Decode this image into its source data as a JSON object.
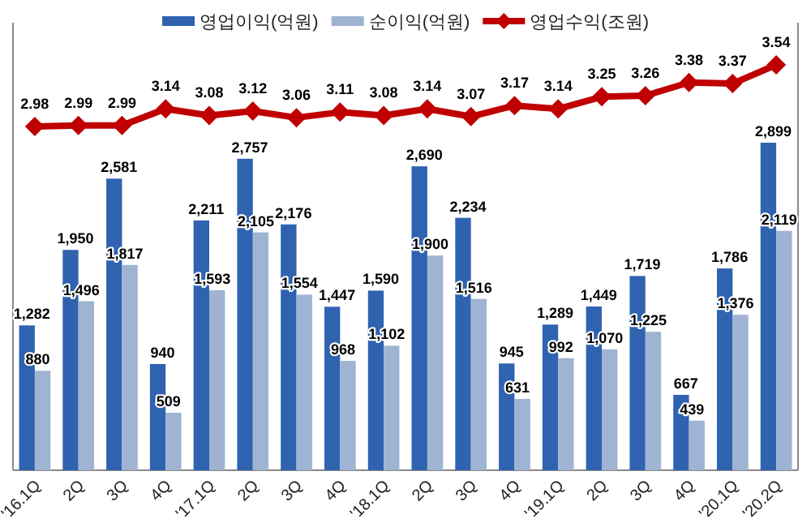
{
  "chart_data": [
    {
      "type": "bar",
      "legend": "top",
      "categories": [
        "'16.1Q",
        "2Q",
        "3Q",
        "4Q",
        "'17.1Q",
        "2Q",
        "3Q",
        "4Q",
        "'18.1Q",
        "2Q",
        "3Q",
        "4Q",
        "'19.1Q",
        "2Q",
        "3Q",
        "4Q",
        "'20.1Q",
        "'20.2Q"
      ],
      "series": [
        {
          "name": "영업이익(억원)",
          "color": "#2f63b0",
          "values": [
            1282,
            1950,
            2581,
            940,
            2211,
            2757,
            2176,
            1447,
            1590,
            2690,
            2234,
            945,
            1289,
            1449,
            1719,
            667,
            1786,
            2899
          ],
          "value_labels": [
            "1,282",
            "1,950",
            "2,581",
            "940",
            "2,211",
            "2,757",
            "2,176",
            "1,447",
            "1,590",
            "2,690",
            "2,234",
            "945",
            "1,289",
            "1,449",
            "1,719",
            "667",
            "1,786",
            "2,899"
          ]
        },
        {
          "name": "순이익(억원)",
          "color": "#9fb3d3",
          "values": [
            880,
            1496,
            1817,
            509,
            1593,
            2105,
            1554,
            968,
            1102,
            1900,
            1516,
            631,
            992,
            1070,
            1225,
            439,
            1376,
            2119
          ],
          "value_labels": [
            "880",
            "1,496",
            "1,817",
            "509",
            "1,593",
            "2,105",
            "1,554",
            "968",
            "1,102",
            "1,900",
            "1,516",
            "631",
            "992",
            "1,070",
            "1,225",
            "439",
            "1,376",
            "2,119"
          ]
        }
      ]
    },
    {
      "type": "line",
      "legend": "top",
      "marker": "diamond",
      "categories": [
        null,
        null,
        null,
        null,
        null,
        null,
        null,
        null,
        null,
        null,
        null,
        null,
        null,
        null,
        null,
        null,
        null,
        null
      ],
      "series": [
        {
          "name": "영업수익(조원)",
          "color": "#c00000",
          "values": [
            2.98,
            2.99,
            2.99,
            3.14,
            3.08,
            3.12,
            3.06,
            3.11,
            3.08,
            3.14,
            3.07,
            3.17,
            3.14,
            3.25,
            3.26,
            3.38,
            3.37,
            3.54
          ],
          "value_labels": [
            "2.98",
            "2.99",
            "2.99",
            "3.14",
            "3.08",
            "3.12",
            "3.06",
            "3.11",
            "3.08",
            "3.14",
            "3.07",
            "3.17",
            "3.14",
            "3.25",
            "3.26",
            "3.38",
            "3.37",
            "3.54"
          ]
        }
      ]
    }
  ]
}
